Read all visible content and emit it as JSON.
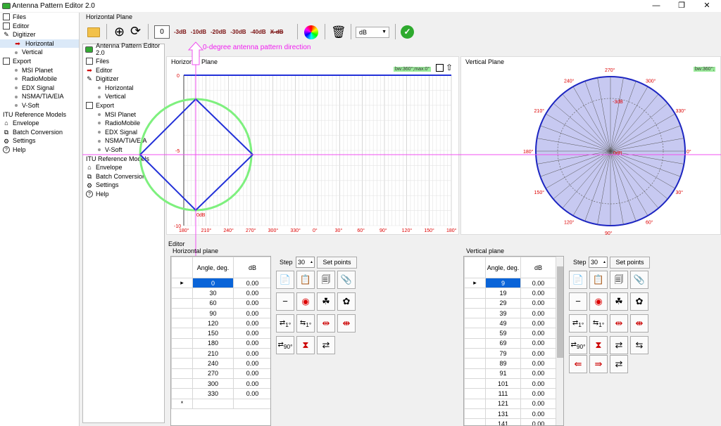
{
  "app": {
    "title": "Antenna Pattern Editor 2.0",
    "minimize": "—",
    "maximize": "❐",
    "close": "✕"
  },
  "sidebar": {
    "items": [
      {
        "label": "Files",
        "icon": "files-icon"
      },
      {
        "label": "Editor",
        "icon": "editor-icon"
      },
      {
        "label": "Digitizer",
        "icon": "pencil-icon"
      },
      {
        "label": "Horizontal",
        "icon": "red-arrow-icon"
      },
      {
        "label": "Vertical",
        "icon": "dot-icon"
      },
      {
        "label": "Export",
        "icon": "export-icon"
      },
      {
        "label": "MSI Planet",
        "icon": "dot-icon"
      },
      {
        "label": "RadioMobile",
        "icon": "dot-icon"
      },
      {
        "label": "EDX Signal",
        "icon": "dot-icon"
      },
      {
        "label": "NSMA/TIA/EIA",
        "icon": "dot-icon"
      },
      {
        "label": "V-Soft",
        "icon": "dot-icon"
      },
      {
        "label": "ITU Reference Models",
        "icon": ""
      },
      {
        "label": "Envelope",
        "icon": "envelope-icon"
      },
      {
        "label": "Batch Conversion",
        "icon": "batch-icon"
      },
      {
        "label": "Settings",
        "icon": "gear-icon"
      },
      {
        "label": "Help",
        "icon": "help-icon"
      }
    ]
  },
  "horizontal_plane_label": "Horizontal Plane",
  "toolbar": {
    "value": "0",
    "db_chips": [
      "-3dB",
      "-10dB",
      "-20dB",
      "-30dB",
      "-40dB",
      "X-dB"
    ],
    "unit_select": "dB"
  },
  "overlay": {
    "inner_title": "Antenna Pattern Editor 2.0",
    "annotation": "0-degree antenna pattern direction"
  },
  "hplot": {
    "title": "Horizontal Plane",
    "bw_label": "bw:360°;max:0°",
    "y_labels": [
      "0",
      "-5",
      "-10"
    ],
    "x_labels": [
      "180°",
      "210°",
      "240°",
      "270°",
      "300°",
      "330°",
      "0°",
      "30°",
      "60°",
      "90°",
      "120°",
      "150°",
      "180°"
    ],
    "odb_label": "0dB"
  },
  "vplot": {
    "title": "Vertical Plane",
    "bw_label": "bw:360°;",
    "angle_labels": [
      "270°",
      "300°",
      "330°",
      "0°",
      "30°",
      "60°",
      "90°",
      "120°",
      "150°",
      "180°",
      "210°",
      "240°"
    ],
    "m3db": "-3dB",
    "odb": "0dB"
  },
  "editor": {
    "label": "Editor",
    "h_label": "Horizontal plane",
    "v_label": "Vertical plane",
    "step_label": "Step",
    "step_value": "30",
    "set_points": "Set points",
    "h_headers": [
      "Angle, deg.",
      "dB"
    ],
    "h_rows": [
      [
        "0",
        "0.00"
      ],
      [
        "30",
        "0.00"
      ],
      [
        "60",
        "0.00"
      ],
      [
        "90",
        "0.00"
      ],
      [
        "120",
        "0.00"
      ],
      [
        "150",
        "0.00"
      ],
      [
        "180",
        "0.00"
      ],
      [
        "210",
        "0.00"
      ],
      [
        "240",
        "0.00"
      ],
      [
        "270",
        "0.00"
      ],
      [
        "300",
        "0.00"
      ],
      [
        "330",
        "0.00"
      ]
    ],
    "new_row_marker": "*",
    "v_headers": [
      "Angle, deg.",
      "dB"
    ],
    "v_rows": [
      [
        "9",
        "0.00"
      ],
      [
        "19",
        "0.00"
      ],
      [
        "29",
        "0.00"
      ],
      [
        "39",
        "0.00"
      ],
      [
        "49",
        "0.00"
      ],
      [
        "59",
        "0.00"
      ],
      [
        "69",
        "0.00"
      ],
      [
        "79",
        "0.00"
      ],
      [
        "89",
        "0.00"
      ],
      [
        "91",
        "0.00"
      ],
      [
        "101",
        "0.00"
      ],
      [
        "111",
        "0.00"
      ],
      [
        "121",
        "0.00"
      ],
      [
        "131",
        "0.00"
      ],
      [
        "141",
        "0.00"
      ]
    ],
    "btn_1deg": "1°",
    "btn_90deg": "90°"
  }
}
